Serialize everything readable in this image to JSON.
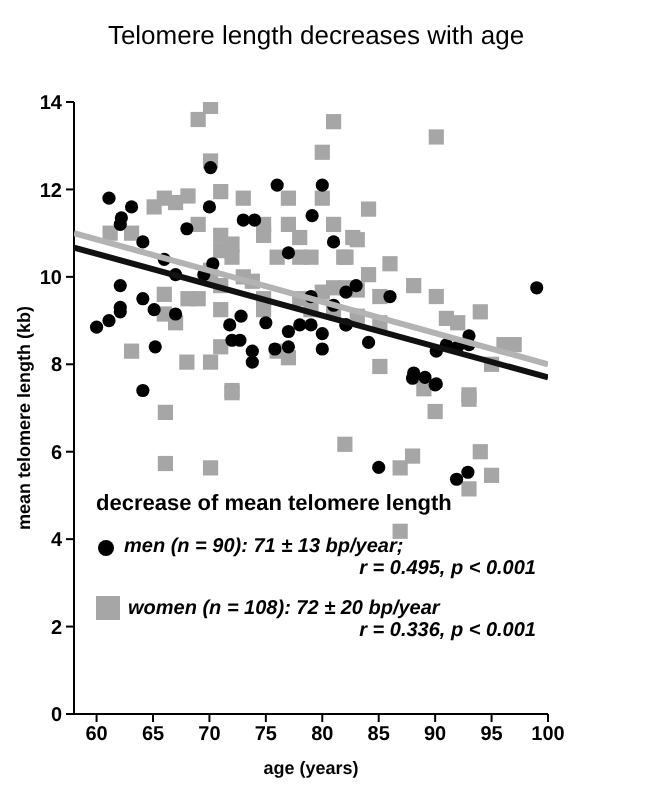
{
  "chart_data": {
    "type": "scatter",
    "title": "Telomere length decreases with age",
    "xlabel": "age (years)",
    "ylabel": "mean telomere length (kb)",
    "legend_title": "decrease of mean telomere length",
    "legend": "bottom",
    "xlim": [
      58,
      100
    ],
    "xticks": [
      60,
      65,
      70,
      75,
      80,
      85,
      90,
      95,
      100
    ],
    "ylim": [
      0,
      14
    ],
    "yticks": [
      0,
      2,
      4,
      6,
      8,
      10,
      12,
      14
    ],
    "annotations": [
      "r = 0.495, p < 0.001",
      "r = 0.336, p < 0.001"
    ],
    "series": [
      {
        "name": "women (n = 108): 72 ± 20 bp/year",
        "color": "#a6a6a6",
        "marker": "square",
        "x": [
          69,
          70.1,
          81,
          80,
          70.1,
          71,
          65.1,
          66,
          67,
          68.1,
          73,
          77,
          80,
          69,
          71,
          74.8,
          77,
          81,
          61.2,
          63.1,
          71,
          72,
          72,
          74.8,
          78,
          78,
          76,
          79,
          81.9,
          82.7,
          70.1,
          70.1,
          71,
          73,
          73.8,
          69,
          68.1,
          66,
          66,
          67,
          71,
          74.8,
          74.8,
          78,
          79,
          80,
          81,
          81,
          82.1,
          63.1,
          68,
          70.1,
          71,
          76,
          77,
          72,
          90.1,
          84.1,
          83.1,
          82.1,
          86,
          84.1,
          83.1,
          85.1,
          88.1,
          90.1,
          83.1,
          85.1,
          91,
          92,
          94,
          96.1,
          97,
          95,
          85.1,
          93,
          66.1,
          72,
          66.1,
          70.1,
          82,
          89,
          90,
          93,
          86.9,
          88,
          94,
          95,
          93,
          86.9
        ],
        "values": [
          13.6,
          13.9,
          13.55,
          12.85,
          12.65,
          11.95,
          11.6,
          11.8,
          11.7,
          11.85,
          11.8,
          11.8,
          11.8,
          11.2,
          10.95,
          11.2,
          11.2,
          11.2,
          11,
          11,
          10.6,
          10.75,
          10.45,
          10.95,
          10.9,
          10.45,
          10.45,
          10.45,
          10.45,
          10.9,
          10.15,
          10,
          9.8,
          10,
          9.9,
          9.5,
          9.5,
          9.6,
          9.15,
          8.95,
          9.25,
          9.5,
          9.25,
          9.5,
          9.25,
          9.65,
          9.75,
          9.2,
          9.75,
          8.3,
          8.05,
          8.05,
          8.4,
          8.3,
          8.15,
          7.4,
          13.2,
          11.55,
          10.85,
          10.45,
          10.3,
          10.05,
          9.7,
          9.55,
          9.8,
          9.55,
          9.1,
          8.95,
          9.05,
          8.95,
          9.2,
          8.45,
          8.45,
          8,
          7.95,
          7.3,
          6.9,
          7.35,
          5.73,
          5.63,
          6.17,
          7.44,
          6.92,
          7.2,
          5.63,
          5.9,
          6,
          5.46,
          5.15,
          4.18
        ]
      },
      {
        "name": "men (n = 90): 71 ± 13 bp/year;",
        "color": "#000000",
        "marker": "circle",
        "x": [
          61.1,
          62.2,
          62.1,
          63.1,
          64.1,
          70.1,
          70,
          68,
          73,
          74,
          76,
          80,
          79.1,
          81,
          66,
          67,
          62.1,
          62.1,
          62.1,
          60,
          61.1,
          64.1,
          65.1,
          67,
          65.2,
          64.1,
          69.5,
          70.3,
          71.8,
          72,
          72.7,
          72.8,
          73.8,
          73.8,
          75,
          75.8,
          77,
          77,
          78,
          79,
          80,
          80,
          79,
          81,
          82.1,
          77,
          82.1,
          83,
          86,
          82.1,
          84.1,
          90.1,
          91,
          92,
          93,
          93,
          88.1,
          89.1,
          90.1,
          99,
          85,
          91.9,
          92.9,
          90,
          88
        ],
        "values": [
          11.8,
          11.35,
          11.2,
          11.6,
          10.8,
          12.5,
          11.6,
          11.1,
          11.3,
          11.3,
          12.1,
          12.1,
          11.4,
          10.8,
          10.4,
          10.05,
          9.8,
          9.3,
          9.2,
          8.85,
          9,
          9.5,
          9.25,
          9.15,
          8.4,
          7.4,
          10.05,
          10.3,
          8.9,
          8.55,
          8.55,
          9.1,
          8.3,
          8.05,
          8.95,
          8.35,
          8.75,
          8.4,
          8.9,
          8.9,
          8.7,
          8.35,
          9.55,
          9.35,
          8.9,
          10.55,
          9.65,
          9.8,
          9.55,
          8.9,
          8.5,
          8.3,
          8.45,
          8.4,
          8.65,
          8.45,
          7.8,
          7.7,
          7.55,
          9.75,
          5.64,
          5.37,
          5.53,
          7.53,
          7.68
        ]
      },
      {
        "type": "line",
        "color": "#b3b3b3",
        "x": [
          58,
          100
        ],
        "values": [
          11,
          8
        ]
      },
      {
        "type": "line",
        "color": "#111111",
        "x": [
          58,
          100
        ],
        "values": [
          10.67,
          7.7
        ]
      }
    ]
  }
}
